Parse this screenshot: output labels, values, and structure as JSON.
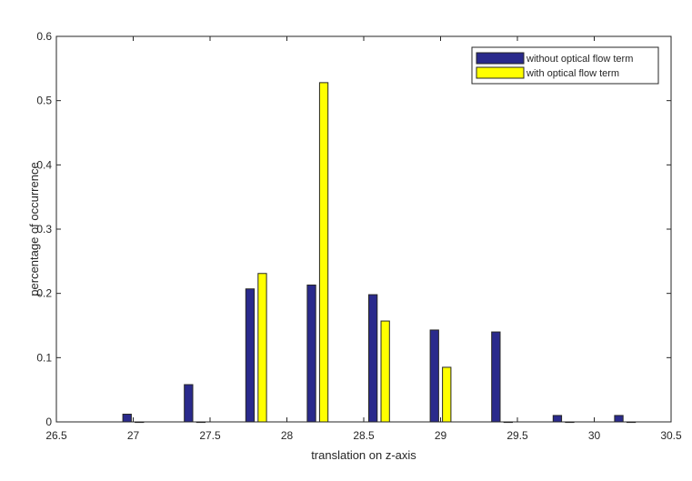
{
  "chart_data": {
    "type": "bar",
    "title": "",
    "xlabel": "translation on z-axis",
    "ylabel": "percentage of occurrence",
    "xlim": [
      26.5,
      30.5
    ],
    "ylim": [
      0,
      0.6
    ],
    "xticks": [
      "26.5",
      "27",
      "27.5",
      "28",
      "28.5",
      "29",
      "29.5",
      "30",
      "30.5"
    ],
    "yticks": [
      "0",
      "0.1",
      "0.2",
      "0.3",
      "0.4",
      "0.5",
      "0.6"
    ],
    "bin_centers": [
      27.0,
      27.4,
      27.8,
      28.2,
      28.6,
      29.0,
      29.4,
      29.8,
      30.2
    ],
    "series": [
      {
        "name": "without optical flow term",
        "color": "#2a2a8c",
        "x": [
          26.96,
          27.36,
          27.76,
          28.16,
          28.56,
          28.96,
          29.36,
          29.76,
          30.16
        ],
        "values": [
          0.012,
          0.058,
          0.207,
          0.213,
          0.198,
          0.143,
          0.14,
          0.01,
          0.01
        ]
      },
      {
        "name": "with optical flow term",
        "color": "#ffff00",
        "x": [
          27.04,
          27.44,
          27.84,
          28.24,
          28.64,
          29.04,
          29.44,
          29.84,
          30.24
        ],
        "values": [
          0.0,
          0.0,
          0.231,
          0.528,
          0.157,
          0.085,
          0.0,
          0.0,
          0.0
        ]
      }
    ],
    "legend_position": "top-right",
    "grid": false
  }
}
